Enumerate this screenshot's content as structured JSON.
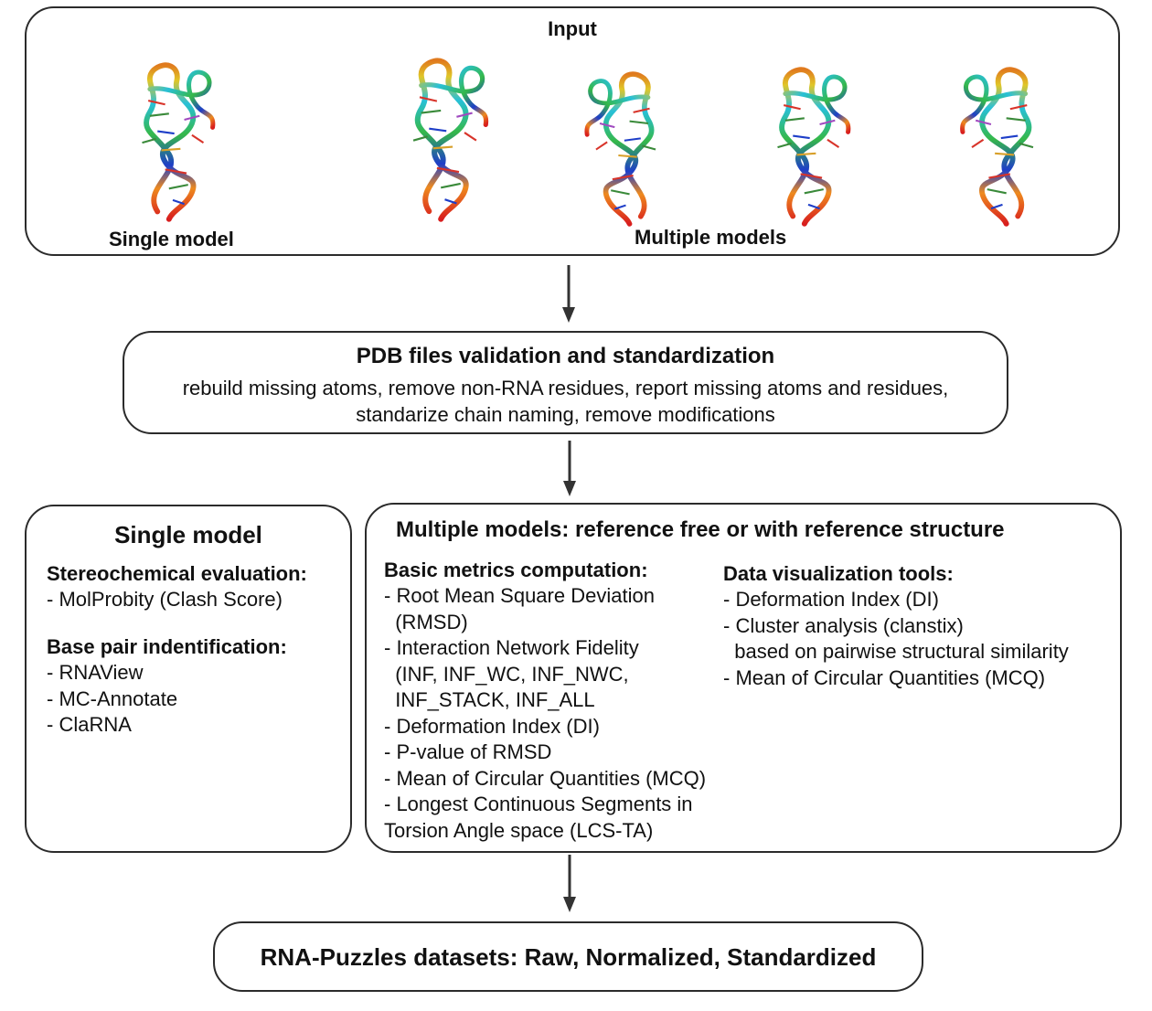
{
  "input_panel": {
    "title": "Input",
    "single_label": "Single model",
    "multiple_label": "Multiple models",
    "structure_images": [
      {
        "name": "single-rna-structure"
      },
      {
        "name": "multi-rna-structure-1"
      },
      {
        "name": "multi-rna-structure-2"
      },
      {
        "name": "multi-rna-structure-3"
      },
      {
        "name": "multi-rna-structure-4"
      }
    ]
  },
  "validation": {
    "title": "PDB files validation and standardization",
    "line1": "rebuild missing atoms, remove non-RNA residues, report missing atoms and residues,",
    "line2": "standarize chain naming, remove modifications"
  },
  "single_model": {
    "title": "Single model",
    "stereo_heading": "Stereochemical evaluation:",
    "stereo_items": [
      "- MolProbity (Clash Score)"
    ],
    "basepair_heading": "Base pair indentification:",
    "basepair_items": [
      "- RNAView",
      "- MC-Annotate",
      "- ClaRNA"
    ]
  },
  "multiple_models": {
    "title": "Multiple models: reference free or with reference structure",
    "basic_heading": "Basic metrics computation:",
    "basic_items": [
      "- Root Mean Square Deviation",
      "  (RMSD)",
      "- Interaction Network Fidelity",
      "  (INF, INF_WC, INF_NWC,",
      "  INF_STACK, INF_ALL",
      "- Deformation Index (DI)",
      "- P-value of RMSD",
      "- Mean of Circular Quantities (MCQ)",
      "- Longest Continuous Segments in",
      "Torsion Angle space (LCS-TA)"
    ],
    "viz_heading": "Data visualization tools:",
    "viz_items": [
      "- Deformation Index (DI)",
      "- Cluster analysis (clanstix)",
      "  based on pairwise structural similarity",
      "- Mean of Circular Quantities (MCQ)"
    ]
  },
  "output": {
    "title": "RNA-Puzzles datasets: Raw, Normalized, Standardized"
  }
}
